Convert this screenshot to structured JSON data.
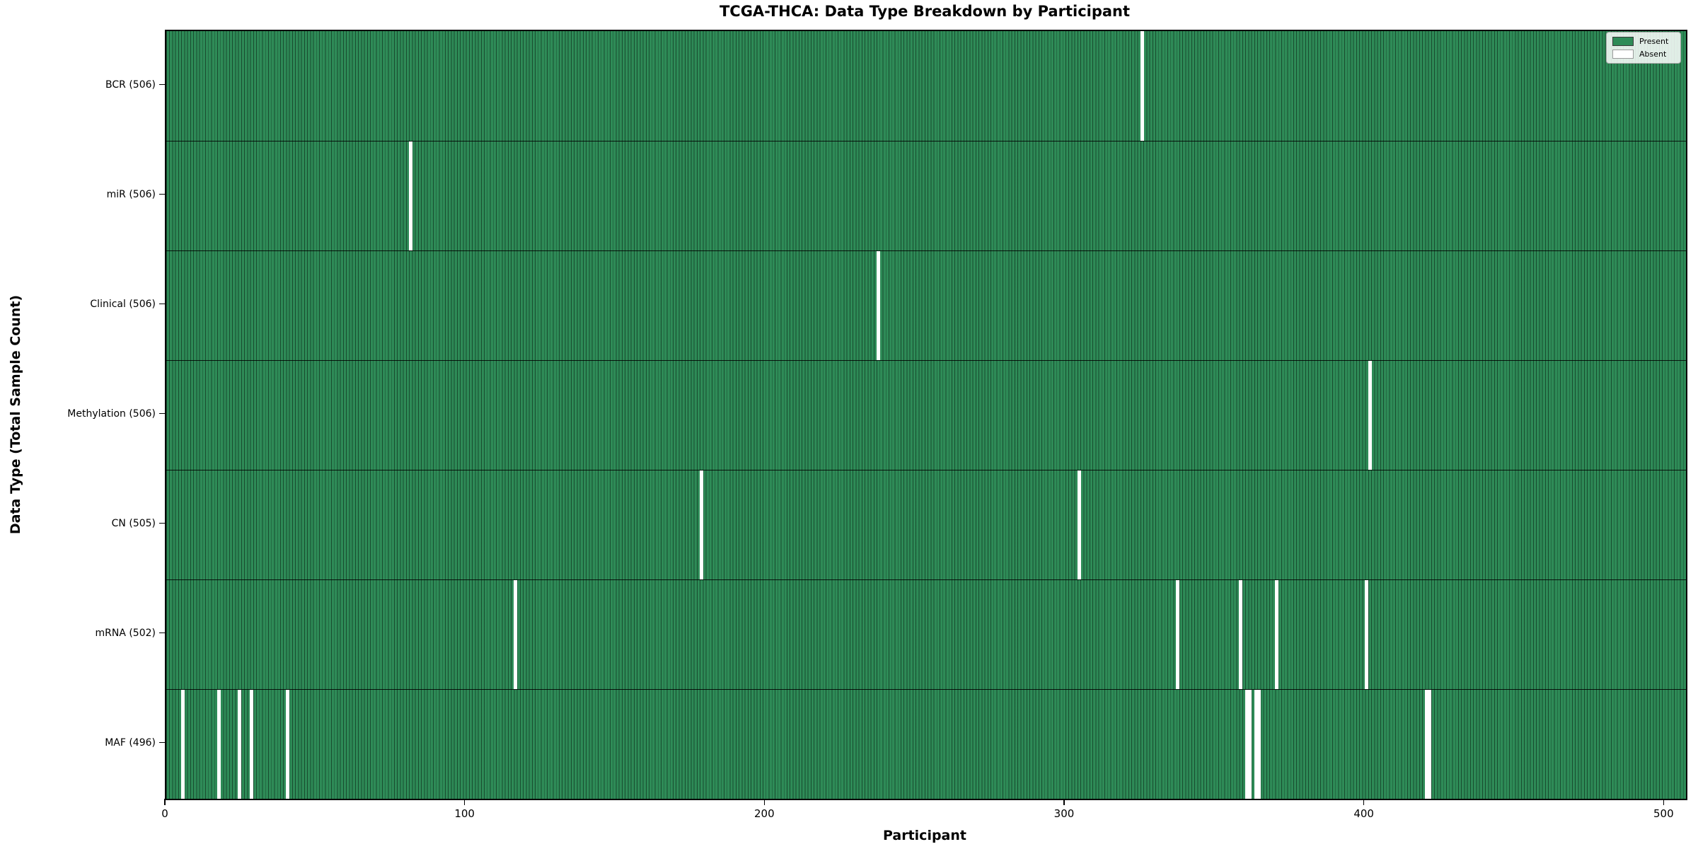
{
  "chart_data": {
    "type": "heatmap",
    "title": "TCGA-THCA: Data Type Breakdown by Participant",
    "xlabel": "Participant",
    "ylabel": "Data Type (Total Sample Count)",
    "x_ticks": [
      0,
      100,
      200,
      300,
      400,
      500
    ],
    "x_range": [
      0,
      507
    ],
    "total_participants": 507,
    "grid": false,
    "legend_position": "upper right",
    "legend": {
      "present_label": "Present",
      "absent_label": "Absent"
    },
    "colors": {
      "present": "#2e8b57",
      "absent": "#ffffff",
      "bar_edge": "#0c2416",
      "spine": "#000000"
    },
    "rows": [
      {
        "label": "BCR (506)",
        "data_type": "BCR",
        "present_count": 506,
        "absent_participants": [
          325
        ]
      },
      {
        "label": "miR (506)",
        "data_type": "miR",
        "present_count": 506,
        "absent_participants": [
          81
        ]
      },
      {
        "label": "Clinical (506)",
        "data_type": "Clinical",
        "present_count": 506,
        "absent_participants": [
          237
        ]
      },
      {
        "label": "Methylation (506)",
        "data_type": "Methylation",
        "present_count": 506,
        "absent_participants": [
          401
        ]
      },
      {
        "label": "CN (505)",
        "data_type": "CN",
        "present_count": 505,
        "absent_participants": [
          178,
          304
        ]
      },
      {
        "label": "mRNA (502)",
        "data_type": "mRNA",
        "present_count": 502,
        "absent_participants": [
          116,
          337,
          358,
          370,
          400
        ]
      },
      {
        "label": "MAF (496)",
        "data_type": "MAF",
        "present_count": 496,
        "absent_participants": [
          5,
          17,
          24,
          28,
          40,
          360,
          361,
          363,
          364,
          420,
          421
        ]
      }
    ]
  }
}
